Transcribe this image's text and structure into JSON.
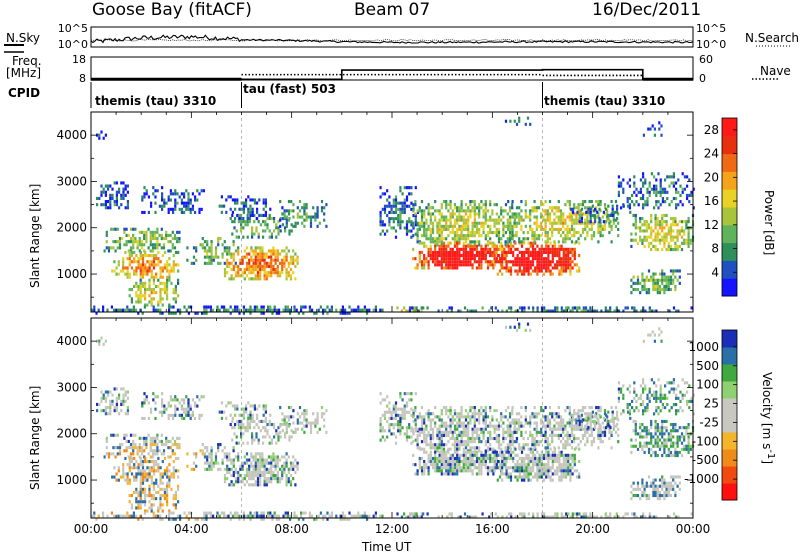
{
  "header": {
    "station": "Goose Bay (fitACF)",
    "beam": "Beam 07",
    "date": "16/Dec/2011"
  },
  "left_labels": {
    "nsky": "N.Sky",
    "freq_line1": "Freq.",
    "freq_line2": "[MHz]",
    "cpid": "CPID"
  },
  "right_labels": {
    "nsearch": "N.Search",
    "nave": "Nave"
  },
  "colors": {
    "power": [
      "#1414ff",
      "#1f4fc0",
      "#2e8f5a",
      "#5fb35a",
      "#a7c43b",
      "#e8d225",
      "#f5a31a",
      "#f06a14",
      "#e8300f",
      "#ff1a1a"
    ],
    "velocity": [
      "#ff1010",
      "#f04a10",
      "#f08a18",
      "#f5b52a",
      "#c8c8c0",
      "#c8c8c0",
      "#8fd070",
      "#3fa83f",
      "#2a6fa5",
      "#1a2fb5"
    ],
    "grey_scatter": "#c5c5bd"
  },
  "chart_data": [
    {
      "type": "line",
      "name": "noise-panel",
      "ylabel_left": "N.Sky",
      "ylabel_right": "N.Search",
      "yticks_left": [
        "10^5",
        "10^0"
      ],
      "yticks_right": [
        "10^5",
        "10^0"
      ],
      "x_hours": [
        0,
        2,
        4,
        6,
        8,
        10,
        12,
        14,
        16,
        18,
        20,
        22,
        24
      ],
      "sky_level_log10": [
        0.4,
        1.6,
        2.0,
        1.2,
        1.0,
        0.6,
        0.4,
        0.4,
        0.5,
        0.6,
        0.6,
        0.5,
        0.4
      ]
    },
    {
      "type": "line",
      "name": "frequency-nave-panel",
      "ylabel_left": "Freq. [MHz]",
      "ylabel_right": "Nave",
      "yticks_left": [
        "18",
        "8"
      ],
      "yticks_right": [
        "60",
        "0"
      ],
      "freq_segments": [
        {
          "from": 0,
          "to": 10,
          "freq": 8.3
        },
        {
          "from": 10,
          "to": 18,
          "freq": 12.3
        },
        {
          "from": 18,
          "to": 22,
          "freq": 12.5
        },
        {
          "from": 22,
          "to": 24,
          "freq": 8.3
        }
      ],
      "nave_segments": [
        {
          "from": 0,
          "to": 6,
          "nave": 2
        },
        {
          "from": 6,
          "to": 18,
          "nave": 14
        },
        {
          "from": 18,
          "to": 22,
          "nave": 12
        },
        {
          "from": 22,
          "to": 24,
          "nave": 2
        }
      ]
    },
    {
      "type": "table",
      "name": "cpid-bar",
      "ylabel": "CPID",
      "modes": [
        {
          "start_hour": 0,
          "label": "themis (tau) 3310"
        },
        {
          "start_hour": 6,
          "label": "tau (fast) 503"
        },
        {
          "start_hour": 18,
          "label": "themis (tau) 3310"
        }
      ]
    },
    {
      "type": "heatmap",
      "name": "power-panel",
      "ylabel": "Slant Range [km]",
      "colorbar_label": "Power [dB]",
      "yticks": [
        1000,
        2000,
        3000,
        4000
      ],
      "ylim": [
        180,
        4500
      ],
      "xlim": [
        0,
        24
      ],
      "colorbar_ticks": [
        4,
        8,
        12,
        16,
        20,
        24,
        28
      ],
      "colorbar_range": [
        0,
        30
      ]
    },
    {
      "type": "heatmap",
      "name": "velocity-panel",
      "ylabel": "Slant Range [km]",
      "colorbar_label": "Velocity [m s^-1]",
      "yticks": [
        1000,
        2000,
        3000,
        4000
      ],
      "ylim": [
        180,
        4500
      ],
      "xlim": [
        0,
        24
      ],
      "colorbar_ticks": [
        "1000",
        "500",
        "100",
        "25",
        "-25",
        "-100",
        "-500",
        "-1000"
      ],
      "xticks": [
        "00:00",
        "04:00",
        "08:00",
        "12:00",
        "16:00",
        "20:00",
        "00:00"
      ],
      "xlabel": "Time UT"
    }
  ]
}
